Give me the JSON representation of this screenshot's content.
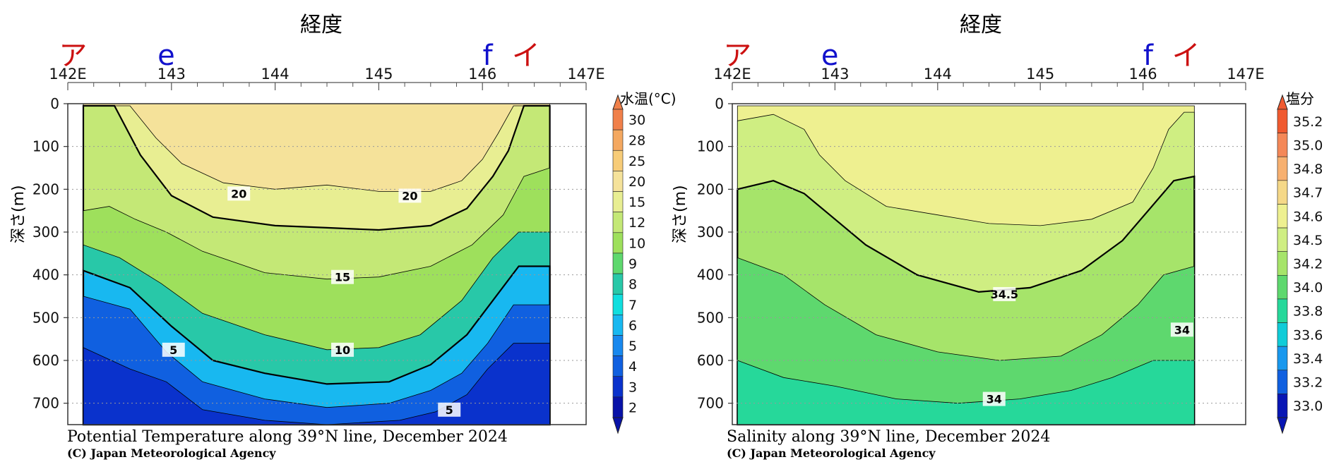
{
  "charts": [
    {
      "xaxis_title": "経度",
      "markers": [
        {
          "label": "ア",
          "lon": 142.05,
          "color": "#cc1111"
        },
        {
          "label": "e",
          "lon": 142.95,
          "color": "#1111cc"
        },
        {
          "label": "f",
          "lon": 146.05,
          "color": "#1111cc"
        },
        {
          "label": "イ",
          "lon": 146.42,
          "color": "#cc1111"
        }
      ],
      "ylabel": "深さ(m)",
      "colorbar_title": "水温(°C)",
      "caption": "Potential Temperature along 39°N line, December 2024",
      "credit": "(C) Japan Meteorological Agency"
    },
    {
      "xaxis_title": "経度",
      "markers": [
        {
          "label": "ア",
          "lon": 142.05,
          "color": "#cc1111"
        },
        {
          "label": "e",
          "lon": 142.95,
          "color": "#1111cc"
        },
        {
          "label": "f",
          "lon": 146.05,
          "color": "#1111cc"
        },
        {
          "label": "イ",
          "lon": 146.42,
          "color": "#cc1111"
        }
      ],
      "ylabel": "深さ(m)",
      "colorbar_title": "塩分",
      "caption": "Salinity along 39°N line, December 2024",
      "credit": "(C) Japan Meteorological Agency"
    }
  ],
  "chart_data": [
    {
      "type": "heatmap",
      "x_ticks": [
        "142E",
        "143",
        "144",
        "145",
        "146",
        "147E"
      ],
      "x_tick_values": [
        142,
        143,
        144,
        145,
        146,
        147
      ],
      "xlim": [
        142,
        147
      ],
      "y_ticks": [
        0,
        100,
        200,
        300,
        400,
        500,
        600,
        700
      ],
      "ylim": [
        750,
        0
      ],
      "data_lon_range": [
        142.15,
        146.65
      ],
      "colorbar_levels": [
        "30",
        "28",
        "25",
        "20",
        "15",
        "12",
        "10",
        "9",
        "8",
        "7",
        "6",
        "5",
        "4",
        "3",
        "2"
      ],
      "colorbar_colors": [
        "#f0804a",
        "#f4a860",
        "#f7cc78",
        "#f5e29a",
        "#e8ee92",
        "#c4e876",
        "#9ee05c",
        "#5ed86e",
        "#28c8a8",
        "#10dede",
        "#18b8f0",
        "#1888ee",
        "#1060e0",
        "#0a32cc",
        "#0812a8"
      ],
      "contour_labels": [
        {
          "text": "20",
          "lon": 143.65,
          "depth": 210
        },
        {
          "text": "20",
          "lon": 145.3,
          "depth": 215
        },
        {
          "text": "15",
          "lon": 144.65,
          "depth": 405
        },
        {
          "text": "10",
          "lon": 144.65,
          "depth": 575
        },
        {
          "text": "5",
          "lon": 143.02,
          "depth": 575
        },
        {
          "text": "5",
          "lon": 145.68,
          "depth": 715
        }
      ],
      "bands": [
        {
          "value": 30,
          "top": [
            [
              142.15,
              0
            ],
            [
              146.65,
              0
            ]
          ],
          "note": "top surface"
        },
        {
          "depth_profile": [
            [
              142.15,
              5
            ],
            [
              142.6,
              5
            ],
            [
              142.85,
              80
            ],
            [
              143.1,
              140
            ],
            [
              143.5,
              185
            ],
            [
              144.0,
              200
            ],
            [
              144.5,
              190
            ],
            [
              145.0,
              205
            ],
            [
              145.5,
              205
            ],
            [
              145.8,
              180
            ],
            [
              146.0,
              130
            ],
            [
              146.15,
              70
            ],
            [
              146.3,
              5
            ],
            [
              146.65,
              5
            ]
          ]
        },
        {
          "depth_profile": [
            [
              142.15,
              5
            ],
            [
              142.45,
              5
            ],
            [
              142.7,
              120
            ],
            [
              143.0,
              215
            ],
            [
              143.4,
              265
            ],
            [
              144.0,
              285
            ],
            [
              144.5,
              290
            ],
            [
              145.0,
              295
            ],
            [
              145.5,
              285
            ],
            [
              145.85,
              245
            ],
            [
              146.1,
              170
            ],
            [
              146.25,
              110
            ],
            [
              146.4,
              5
            ],
            [
              146.65,
              5
            ]
          ]
        },
        {
          "depth_profile": [
            [
              142.15,
              250
            ],
            [
              142.4,
              240
            ],
            [
              142.65,
              270
            ],
            [
              142.95,
              300
            ],
            [
              143.3,
              345
            ],
            [
              143.9,
              395
            ],
            [
              144.5,
              410
            ],
            [
              145.0,
              405
            ],
            [
              145.5,
              380
            ],
            [
              145.9,
              330
            ],
            [
              146.2,
              260
            ],
            [
              146.4,
              170
            ],
            [
              146.65,
              150
            ]
          ]
        },
        {
          "depth_profile": [
            [
              142.15,
              330
            ],
            [
              142.5,
              360
            ],
            [
              142.9,
              420
            ],
            [
              143.3,
              490
            ],
            [
              143.9,
              540
            ],
            [
              144.5,
              575
            ],
            [
              145.0,
              570
            ],
            [
              145.4,
              540
            ],
            [
              145.8,
              460
            ],
            [
              146.1,
              360
            ],
            [
              146.35,
              300
            ],
            [
              146.65,
              300
            ]
          ]
        },
        {
          "depth_profile": [
            [
              142.15,
              390
            ],
            [
              142.6,
              430
            ],
            [
              143.0,
              520
            ],
            [
              143.4,
              600
            ],
            [
              143.9,
              630
            ],
            [
              144.5,
              655
            ],
            [
              145.1,
              650
            ],
            [
              145.5,
              610
            ],
            [
              145.85,
              540
            ],
            [
              146.1,
              460
            ],
            [
              146.35,
              380
            ],
            [
              146.65,
              380
            ]
          ]
        },
        {
          "depth_profile": [
            [
              142.15,
              450
            ],
            [
              142.6,
              480
            ],
            [
              142.95,
              580
            ],
            [
              143.3,
              650
            ],
            [
              143.9,
              690
            ],
            [
              144.5,
              710
            ],
            [
              145.1,
              700
            ],
            [
              145.5,
              670
            ],
            [
              145.8,
              630
            ],
            [
              146.05,
              560
            ],
            [
              146.3,
              470
            ],
            [
              146.65,
              470
            ]
          ]
        },
        {
          "depth_profile": [
            [
              142.15,
              570
            ],
            [
              142.6,
              620
            ],
            [
              142.95,
              650
            ],
            [
              143.3,
              715
            ],
            [
              143.9,
              740
            ],
            [
              144.5,
              750
            ],
            [
              145.2,
              740
            ],
            [
              145.55,
              720
            ],
            [
              145.85,
              680
            ],
            [
              146.05,
              620
            ],
            [
              146.3,
              560
            ],
            [
              146.65,
              560
            ]
          ]
        }
      ]
    },
    {
      "type": "heatmap",
      "x_ticks": [
        "142E",
        "143",
        "144",
        "145",
        "146",
        "147E"
      ],
      "x_tick_values": [
        142,
        143,
        144,
        145,
        146,
        147
      ],
      "xlim": [
        142,
        147
      ],
      "y_ticks": [
        0,
        100,
        200,
        300,
        400,
        500,
        600,
        700
      ],
      "ylim": [
        750,
        0
      ],
      "data_lon_range": [
        142.05,
        146.5
      ],
      "colorbar_levels": [
        "35.2",
        "35.0",
        "34.8",
        "34.7",
        "34.6",
        "34.5",
        "34.2",
        "34.0",
        "33.8",
        "33.6",
        "33.4",
        "33.2",
        "33.0"
      ],
      "colorbar_colors": [
        "#f05a30",
        "#f48858",
        "#f7b070",
        "#f5d888",
        "#eef090",
        "#cfee82",
        "#a6e46a",
        "#5ed86e",
        "#26d89a",
        "#10ccd8",
        "#1898ee",
        "#1060e0",
        "#0816b4"
      ],
      "contour_labels": [
        {
          "text": "34.5",
          "lon": 144.65,
          "depth": 445
        },
        {
          "text": "34",
          "lon": 146.38,
          "depth": 528
        },
        {
          "text": "34",
          "lon": 144.55,
          "depth": 690
        }
      ],
      "bands": [
        {
          "depth_profile": [
            [
              142.05,
              5
            ],
            [
              146.5,
              5
            ]
          ]
        },
        {
          "depth_profile": [
            [
              142.05,
              40
            ],
            [
              142.4,
              25
            ],
            [
              142.7,
              60
            ],
            [
              142.85,
              120
            ],
            [
              143.1,
              180
            ],
            [
              143.5,
              240
            ],
            [
              144.0,
              260
            ],
            [
              144.5,
              280
            ],
            [
              145.0,
              285
            ],
            [
              145.5,
              270
            ],
            [
              145.9,
              230
            ],
            [
              146.1,
              150
            ],
            [
              146.25,
              60
            ],
            [
              146.4,
              20
            ],
            [
              146.5,
              20
            ]
          ]
        },
        {
          "depth_profile": [
            [
              142.05,
              200
            ],
            [
              142.4,
              180
            ],
            [
              142.7,
              210
            ],
            [
              142.95,
              260
            ],
            [
              143.3,
              330
            ],
            [
              143.8,
              400
            ],
            [
              144.4,
              440
            ],
            [
              144.9,
              430
            ],
            [
              145.4,
              390
            ],
            [
              145.8,
              320
            ],
            [
              146.05,
              250
            ],
            [
              146.3,
              180
            ],
            [
              146.5,
              170
            ]
          ]
        },
        {
          "depth_profile": [
            [
              142.05,
              360
            ],
            [
              142.5,
              400
            ],
            [
              142.9,
              470
            ],
            [
              143.4,
              540
            ],
            [
              144.0,
              580
            ],
            [
              144.6,
              600
            ],
            [
              145.2,
              590
            ],
            [
              145.6,
              540
            ],
            [
              145.95,
              470
            ],
            [
              146.2,
              400
            ],
            [
              146.5,
              380
            ]
          ]
        },
        {
          "depth_profile": [
            [
              142.05,
              600
            ],
            [
              142.5,
              640
            ],
            [
              143.0,
              660
            ],
            [
              143.6,
              690
            ],
            [
              144.2,
              700
            ],
            [
              144.8,
              690
            ],
            [
              145.3,
              670
            ],
            [
              145.7,
              640
            ],
            [
              146.1,
              600
            ],
            [
              146.5,
              600
            ]
          ]
        }
      ]
    }
  ]
}
